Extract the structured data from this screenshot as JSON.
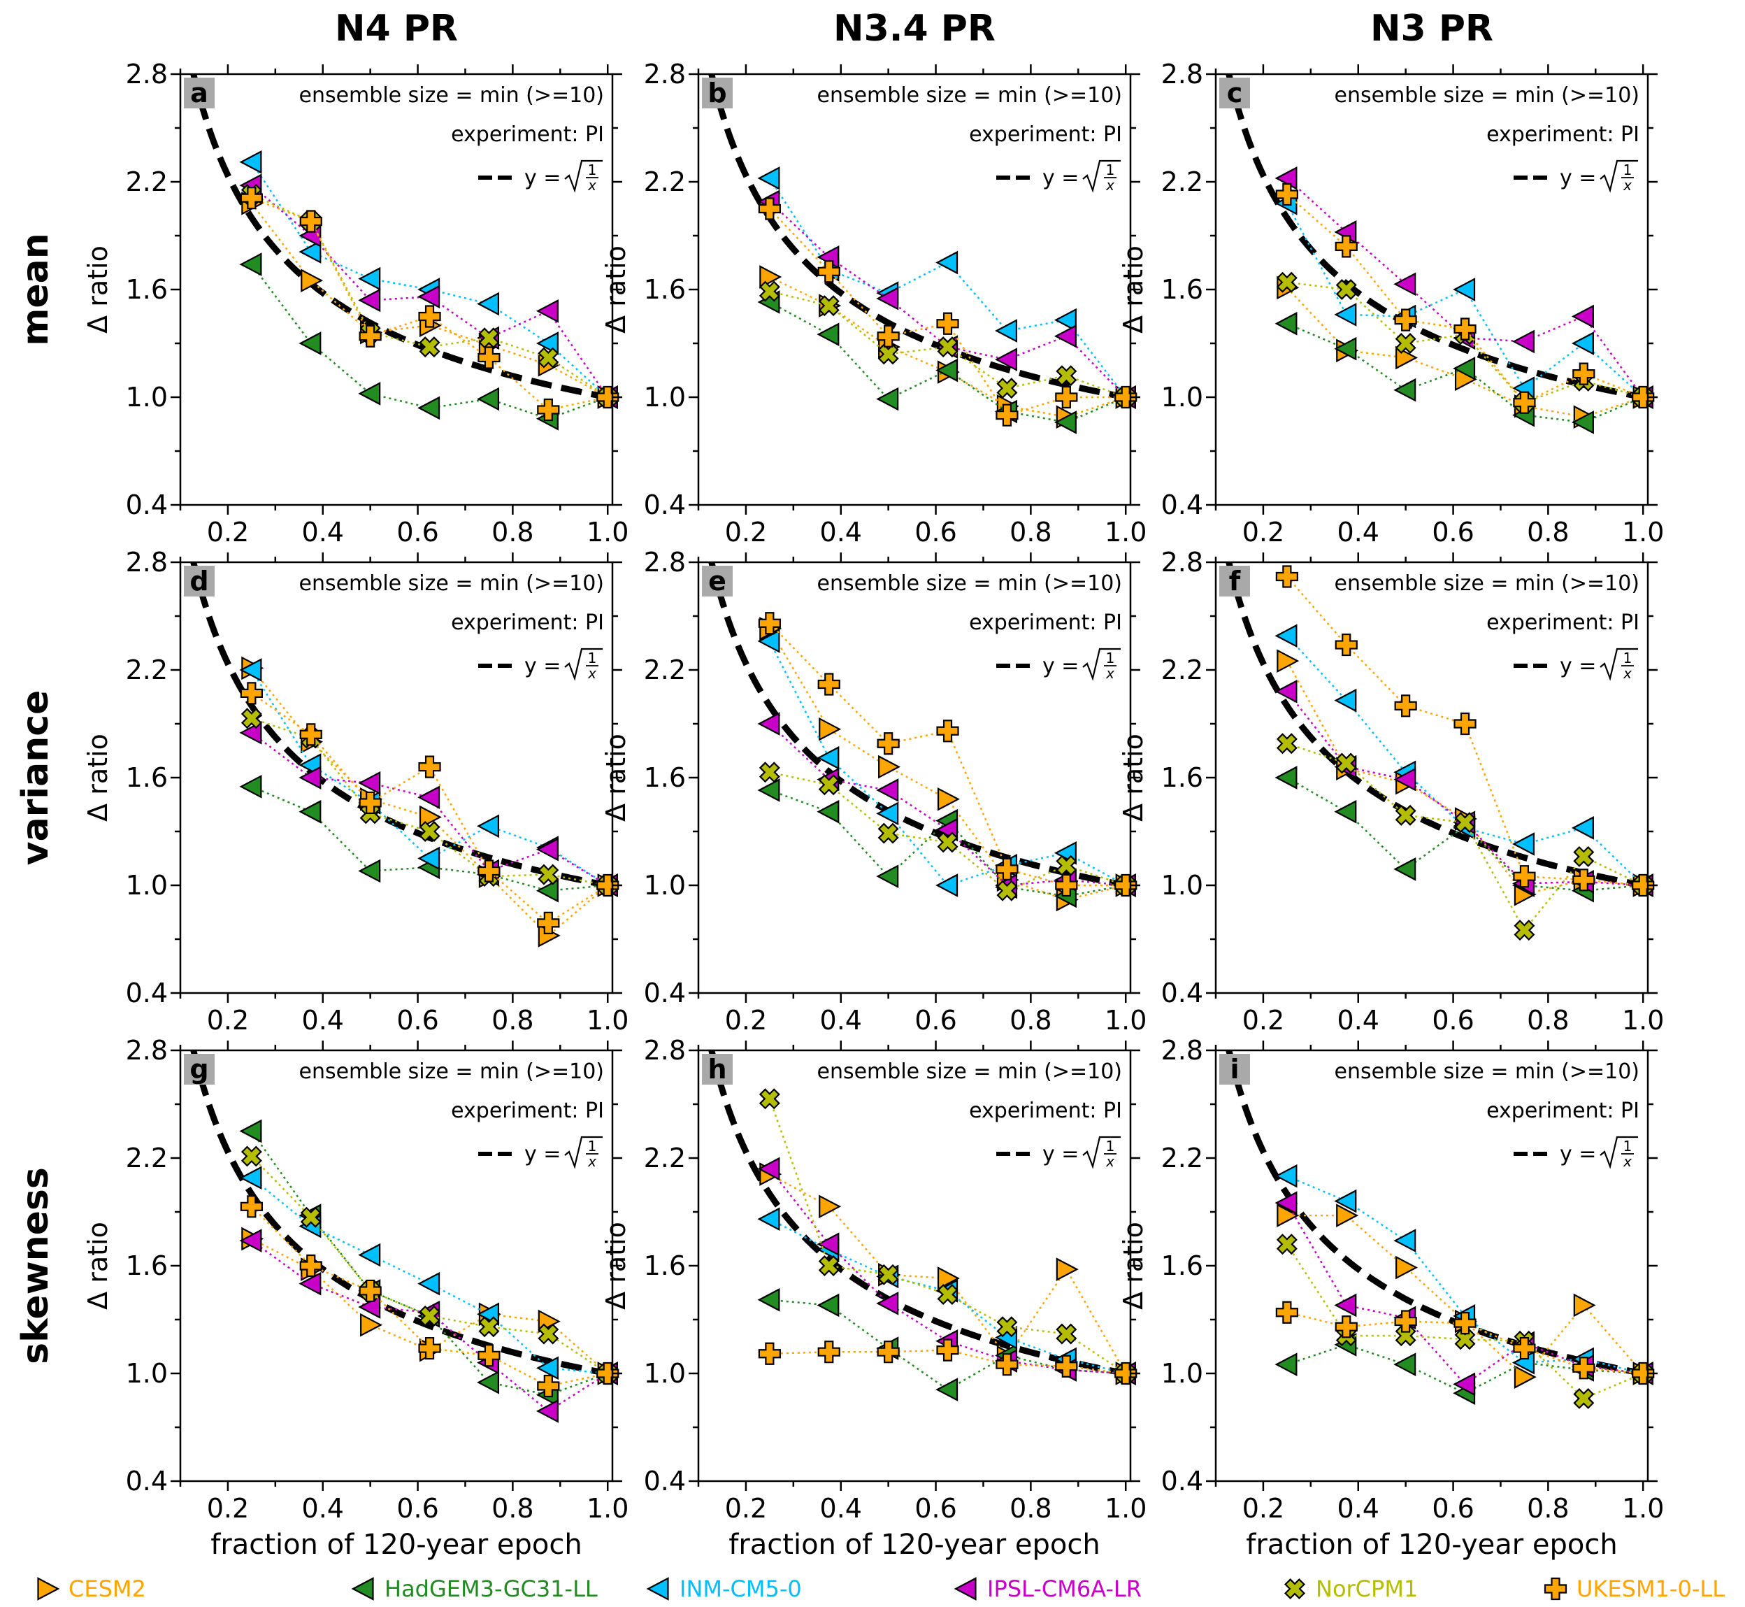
{
  "figure": {
    "column_titles": [
      "N4 PR",
      "N3.4 PR",
      "N3 PR"
    ],
    "row_titles": [
      "mean",
      "variance",
      "skewness"
    ],
    "ylabel": "Δ ratio",
    "xlabel": "fraction of 120-year epoch",
    "annotation_ensemble": "ensemble size = min (>=10)",
    "annotation_experiment": "experiment: PI",
    "reference_curve_label": "y = √(1/x)",
    "reference_curve_prefix": "y =",
    "reference_curve_frac_num": "1",
    "reference_curve_frac_den": "x"
  },
  "chart_data": {
    "type": "scatter",
    "x": [
      0.25,
      0.375,
      0.5,
      0.625,
      0.75,
      0.875,
      1.0
    ],
    "xlim": [
      0.1,
      1.01
    ],
    "ylim": [
      0.4,
      2.8
    ],
    "xticks": [
      "0.2",
      "0.4",
      "0.6",
      "0.8",
      "1.0"
    ],
    "yticks": [
      "0.4",
      "1.0",
      "1.6",
      "2.2",
      "2.8"
    ],
    "reference_curve": "y = sqrt(1/x)",
    "models": [
      {
        "name": "CESM2",
        "color": "#FFA500",
        "marker": "triangle-right"
      },
      {
        "name": "HadGEM3-GC31-LL",
        "color": "#228B22",
        "marker": "triangle-left"
      },
      {
        "name": "INM-CM5-0",
        "color": "#00BFFF",
        "marker": "triangle-left"
      },
      {
        "name": "IPSL-CM6A-LR",
        "color": "#C800C8",
        "marker": "triangle-left"
      },
      {
        "name": "NorCPM1",
        "color": "#B5BD00",
        "marker": "x"
      },
      {
        "name": "UKESM1-0-LL",
        "color": "#FFA500",
        "marker": "plus"
      }
    ],
    "panels": [
      {
        "letter": "a",
        "row": "mean",
        "column": "N4 PR",
        "series": [
          [
            2.08,
            1.65,
            1.36,
            1.4,
            1.29,
            1.18,
            1.0
          ],
          [
            1.74,
            1.3,
            1.02,
            0.94,
            0.99,
            0.88,
            1.0
          ],
          [
            2.31,
            1.81,
            1.66,
            1.6,
            1.52,
            1.3,
            1.0
          ],
          [
            2.18,
            1.9,
            1.54,
            1.56,
            1.33,
            1.48,
            1.0
          ],
          [
            2.13,
            1.98,
            1.36,
            1.28,
            1.33,
            1.22,
            1.0
          ],
          [
            2.11,
            1.98,
            1.34,
            1.45,
            1.22,
            0.93,
            1.0
          ]
        ]
      },
      {
        "letter": "b",
        "row": "mean",
        "column": "N3.4 PR",
        "series": [
          [
            1.67,
            1.51,
            1.28,
            1.14,
            0.95,
            0.89,
            1.0
          ],
          [
            1.53,
            1.35,
            0.99,
            1.15,
            0.92,
            0.86,
            1.0
          ],
          [
            2.22,
            1.71,
            1.58,
            1.75,
            1.37,
            1.43,
            1.0
          ],
          [
            2.09,
            1.78,
            1.55,
            1.28,
            1.21,
            1.34,
            1.0
          ],
          [
            1.59,
            1.51,
            1.24,
            1.28,
            1.05,
            1.12,
            1.0
          ],
          [
            2.05,
            1.7,
            1.34,
            1.41,
            0.9,
            1.0,
            1.0
          ]
        ]
      },
      {
        "letter": "c",
        "row": "mean",
        "column": "N3 PR",
        "series": [
          [
            1.61,
            1.26,
            1.22,
            1.1,
            0.95,
            0.89,
            1.0
          ],
          [
            1.41,
            1.27,
            1.04,
            1.16,
            0.9,
            0.86,
            1.0
          ],
          [
            2.08,
            1.46,
            1.45,
            1.6,
            1.05,
            1.3,
            1.0
          ],
          [
            2.22,
            1.92,
            1.63,
            1.33,
            1.31,
            1.45,
            1.0
          ],
          [
            1.64,
            1.6,
            1.3,
            1.35,
            0.97,
            1.09,
            1.0
          ],
          [
            2.13,
            1.84,
            1.43,
            1.38,
            0.97,
            1.13,
            1.0
          ]
        ]
      },
      {
        "letter": "d",
        "row": "variance",
        "column": "N4 PR",
        "series": [
          [
            2.21,
            1.8,
            1.48,
            1.38,
            1.05,
            0.72,
            1.0
          ],
          [
            1.55,
            1.41,
            1.08,
            1.1,
            1.06,
            0.97,
            1.0
          ],
          [
            2.2,
            1.67,
            1.46,
            1.15,
            1.33,
            1.21,
            1.0
          ],
          [
            1.85,
            1.6,
            1.57,
            1.49,
            1.08,
            1.2,
            1.0
          ],
          [
            1.93,
            1.82,
            1.4,
            1.3,
            1.05,
            1.06,
            1.0
          ],
          [
            2.07,
            1.84,
            1.46,
            1.66,
            1.08,
            0.79,
            1.0
          ]
        ]
      },
      {
        "letter": "e",
        "row": "variance",
        "column": "N3.4 PR",
        "series": [
          [
            2.43,
            1.87,
            1.66,
            1.48,
            1.03,
            0.92,
            1.0
          ],
          [
            1.53,
            1.41,
            1.05,
            1.36,
            0.99,
            0.94,
            1.0
          ],
          [
            2.36,
            1.71,
            1.4,
            1.0,
            1.11,
            1.18,
            1.0
          ],
          [
            1.9,
            1.59,
            1.53,
            1.31,
            1.0,
            1.03,
            1.0
          ],
          [
            1.63,
            1.56,
            1.29,
            1.24,
            0.97,
            1.11,
            1.0
          ],
          [
            2.46,
            2.12,
            1.79,
            1.86,
            1.09,
            1.0,
            1.0
          ]
        ]
      },
      {
        "letter": "f",
        "row": "variance",
        "column": "N3 PR",
        "series": [
          [
            2.25,
            1.65,
            1.57,
            1.37,
            0.95,
            1.03,
            1.0
          ],
          [
            1.6,
            1.41,
            1.09,
            1.33,
            1.0,
            0.97,
            1.0
          ],
          [
            2.39,
            2.03,
            1.63,
            1.32,
            1.23,
            1.32,
            1.0
          ],
          [
            2.08,
            1.66,
            1.59,
            1.35,
            1.01,
            1.02,
            1.0
          ],
          [
            1.79,
            1.68,
            1.39,
            1.35,
            0.75,
            1.16,
            1.0
          ],
          [
            2.72,
            2.34,
            2.0,
            1.9,
            1.05,
            1.03,
            1.0
          ]
        ]
      },
      {
        "letter": "g",
        "row": "skewness",
        "column": "N4 PR",
        "series": [
          [
            1.75,
            1.58,
            1.27,
            1.13,
            1.33,
            1.29,
            1.0
          ],
          [
            2.35,
            1.88,
            1.46,
            1.32,
            0.95,
            0.88,
            1.0
          ],
          [
            2.09,
            1.82,
            1.66,
            1.5,
            1.33,
            1.03,
            1.0
          ],
          [
            1.74,
            1.5,
            1.37,
            1.34,
            1.06,
            0.79,
            1.0
          ],
          [
            2.21,
            1.87,
            1.46,
            1.32,
            1.26,
            1.22,
            1.0
          ],
          [
            1.93,
            1.6,
            1.46,
            1.14,
            1.1,
            0.93,
            1.0
          ]
        ]
      },
      {
        "letter": "h",
        "row": "skewness",
        "column": "N3.4 PR",
        "series": [
          [
            2.11,
            1.93,
            1.55,
            1.53,
            1.09,
            1.58,
            1.0
          ],
          [
            1.41,
            1.38,
            1.14,
            0.91,
            1.1,
            1.02,
            1.0
          ],
          [
            1.86,
            1.69,
            1.54,
            1.46,
            1.2,
            1.08,
            1.0
          ],
          [
            2.14,
            1.72,
            1.39,
            1.18,
            1.07,
            1.02,
            1.0
          ],
          [
            2.53,
            1.6,
            1.55,
            1.44,
            1.26,
            1.22,
            1.0
          ],
          [
            1.11,
            1.12,
            1.12,
            1.13,
            1.05,
            1.04,
            1.0
          ]
        ]
      },
      {
        "letter": "i",
        "row": "skewness",
        "column": "N3 PR",
        "series": [
          [
            1.88,
            1.88,
            1.59,
            1.29,
            0.98,
            1.38,
            1.0
          ],
          [
            1.05,
            1.16,
            1.05,
            0.89,
            1.06,
            1.02,
            1.0
          ],
          [
            2.1,
            1.96,
            1.74,
            1.32,
            1.06,
            1.08,
            1.0
          ],
          [
            1.95,
            1.38,
            1.31,
            0.94,
            1.17,
            1.04,
            1.0
          ],
          [
            1.72,
            1.21,
            1.21,
            1.19,
            1.18,
            0.86,
            1.0
          ],
          [
            1.34,
            1.26,
            1.29,
            1.28,
            1.14,
            1.03,
            1.0
          ]
        ]
      }
    ]
  }
}
